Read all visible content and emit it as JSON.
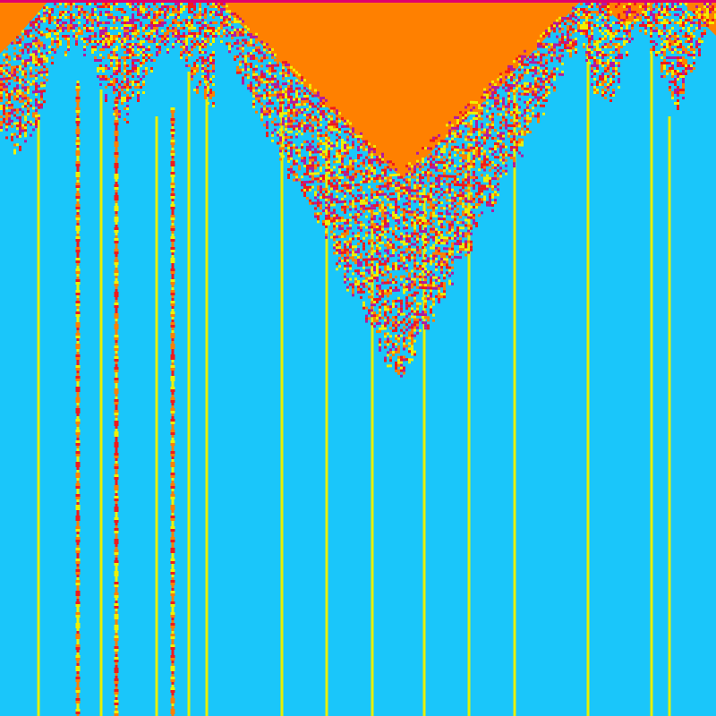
{
  "colors": {
    "background": "#1ac6fa",
    "orange_region": "#ff8000",
    "line": "#e8f000",
    "chaos_red": "#f01a1a",
    "chaos_magenta": "#b01aa0",
    "chaos_yellow": "#f0f000",
    "chaos_orange": "#ff8000",
    "top_edge": "#e0006e"
  }
}
